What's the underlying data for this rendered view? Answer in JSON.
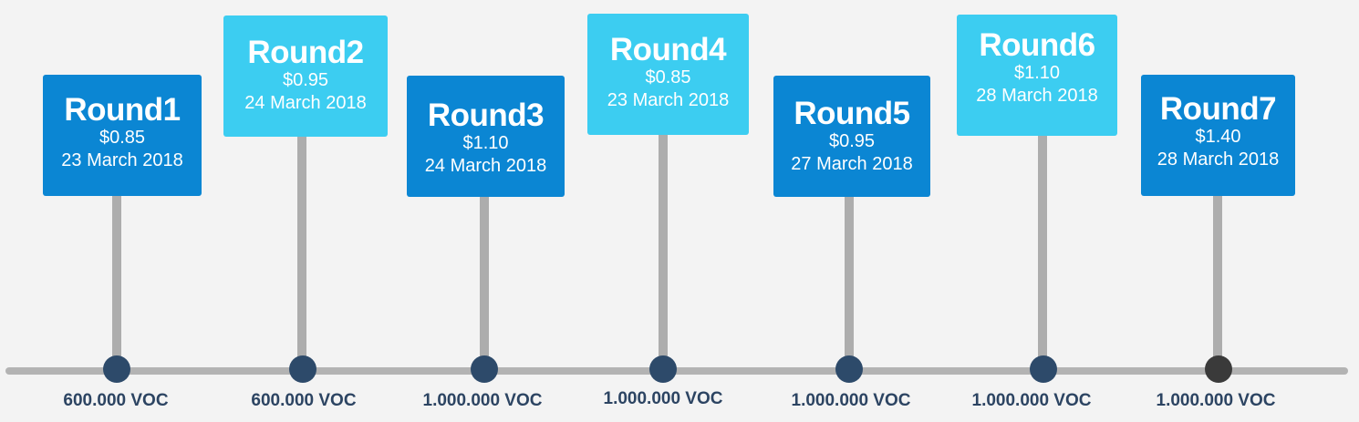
{
  "rounds": [
    {
      "title": "Round1",
      "price": "$0.85",
      "date": "23 March 2018",
      "amount": "600.000 VOC",
      "style": "dark"
    },
    {
      "title": "Round2",
      "price": "$0.95",
      "date": "24 March 2018",
      "amount": "600.000 VOC",
      "style": "light"
    },
    {
      "title": "Round3",
      "price": "$1.10",
      "date": "24 March 2018",
      "amount": "1.000.000 VOC",
      "style": "dark"
    },
    {
      "title": "Round4",
      "price": "$0.85",
      "date": "23 March 2018",
      "amount": "1.000.000 VOC",
      "style": "light"
    },
    {
      "title": "Round5",
      "price": "$0.95",
      "date": "27 March 2018",
      "amount": "1.000.000 VOC",
      "style": "dark"
    },
    {
      "title": "Round6",
      "price": "$1.10",
      "date": "28 March 2018",
      "amount": "1.000.000 VOC",
      "style": "light"
    },
    {
      "title": "Round7",
      "price": "$1.40",
      "date": "28 March 2018",
      "amount": "1.000.000 VOC",
      "style": "dark"
    }
  ],
  "colors": {
    "card_dark": "#0b86d3",
    "card_light": "#3ccdf1",
    "marker": "#2d4a6a",
    "marker_last": "#3a3a3a",
    "axis": "#b3b3b3",
    "amount_text": "#2c4462"
  }
}
